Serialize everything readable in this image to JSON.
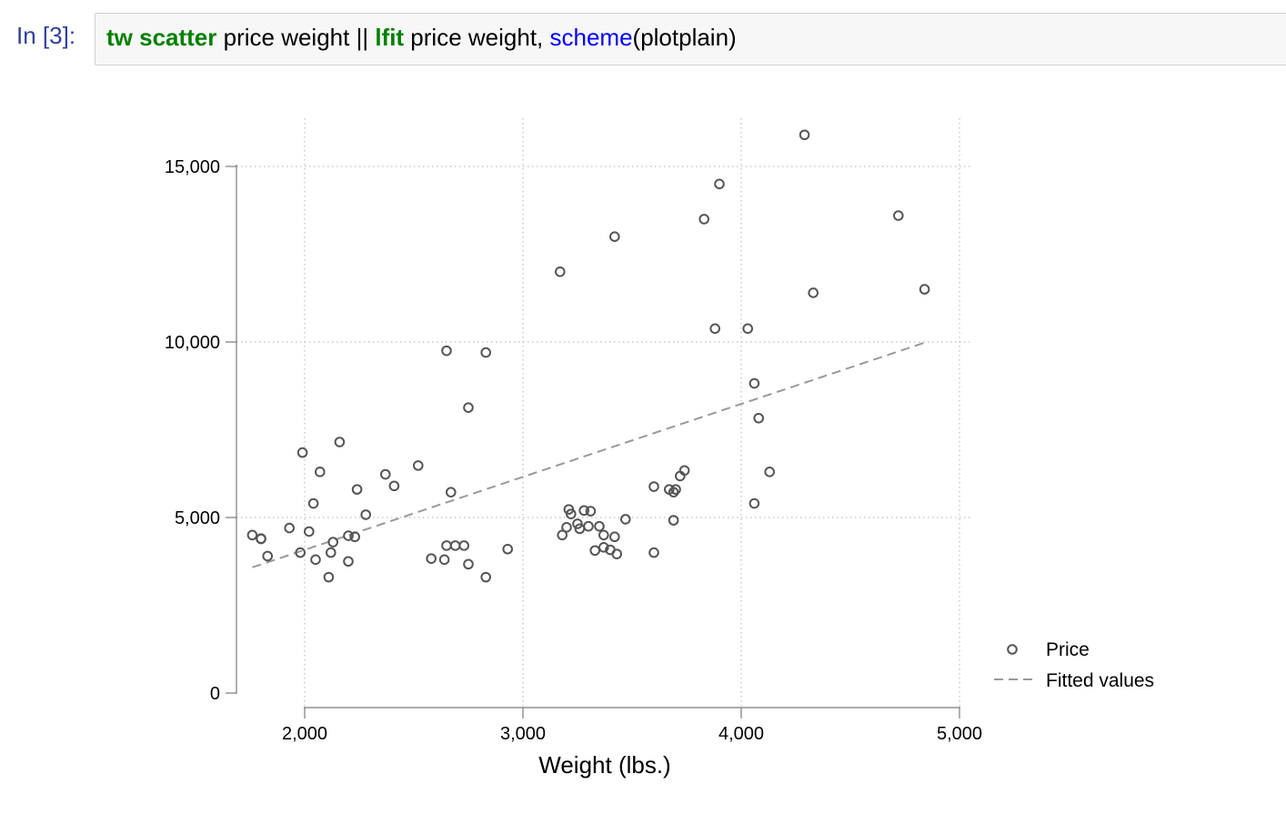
{
  "cell": {
    "prompt": "In [3]:",
    "code_tokens": [
      {
        "text": "tw scatter",
        "style": "green"
      },
      {
        "text": " price weight || ",
        "style": "plain"
      },
      {
        "text": "lfit",
        "style": "green"
      },
      {
        "text": " price weight, ",
        "style": "plain"
      },
      {
        "text": "scheme",
        "style": "blue"
      },
      {
        "text": "(plotplain)",
        "style": "plain"
      }
    ]
  },
  "chart_data": {
    "type": "scatter",
    "title": "",
    "xlabel": "Weight (lbs.)",
    "ylabel": "",
    "xlim": [
      1760,
      5000
    ],
    "ylim": [
      0,
      16000
    ],
    "xticks": [
      2000,
      3000,
      4000,
      5000
    ],
    "xtick_labels": [
      "2,000",
      "3,000",
      "4,000",
      "5,000"
    ],
    "yticks": [
      0,
      5000,
      10000,
      15000
    ],
    "ytick_labels": [
      "0",
      "5,000",
      "10,000",
      "15,000"
    ],
    "grid": true,
    "legend_position": "right",
    "series": [
      {
        "name": "Price",
        "kind": "scatter",
        "marker": "hollow-circle",
        "color": "#555555",
        "points": [
          [
            1760,
            4500
          ],
          [
            1800,
            4400
          ],
          [
            1800,
            4390
          ],
          [
            1830,
            3900
          ],
          [
            1930,
            4700
          ],
          [
            1980,
            4000
          ],
          [
            1990,
            6850
          ],
          [
            2020,
            4600
          ],
          [
            2040,
            5400
          ],
          [
            2050,
            3800
          ],
          [
            2070,
            6300
          ],
          [
            2110,
            3300
          ],
          [
            2120,
            4000
          ],
          [
            2130,
            4300
          ],
          [
            2160,
            7150
          ],
          [
            2200,
            3750
          ],
          [
            2200,
            4480
          ],
          [
            2230,
            4450
          ],
          [
            2240,
            5800
          ],
          [
            2280,
            5080
          ],
          [
            2370,
            6230
          ],
          [
            2410,
            5900
          ],
          [
            2520,
            6480
          ],
          [
            2580,
            3830
          ],
          [
            2640,
            3800
          ],
          [
            2650,
            9750
          ],
          [
            2650,
            4200
          ],
          [
            2670,
            5720
          ],
          [
            2690,
            4200
          ],
          [
            2730,
            4200
          ],
          [
            2750,
            8130
          ],
          [
            2750,
            3670
          ],
          [
            2830,
            3300
          ],
          [
            2830,
            9700
          ],
          [
            2930,
            4100
          ],
          [
            3170,
            12000
          ],
          [
            3180,
            4500
          ],
          [
            3200,
            4720
          ],
          [
            3210,
            5230
          ],
          [
            3220,
            5100
          ],
          [
            3250,
            4820
          ],
          [
            3260,
            4680
          ],
          [
            3280,
            5200
          ],
          [
            3300,
            4750
          ],
          [
            3310,
            5180
          ],
          [
            3330,
            4060
          ],
          [
            3350,
            4750
          ],
          [
            3370,
            4500
          ],
          [
            3370,
            4150
          ],
          [
            3400,
            4080
          ],
          [
            3420,
            4450
          ],
          [
            3420,
            13000
          ],
          [
            3430,
            3960
          ],
          [
            3470,
            4950
          ],
          [
            3600,
            5880
          ],
          [
            3600,
            4000
          ],
          [
            3670,
            5800
          ],
          [
            3690,
            4920
          ],
          [
            3690,
            5720
          ],
          [
            3700,
            5800
          ],
          [
            3720,
            6180
          ],
          [
            3740,
            6340
          ],
          [
            3830,
            13500
          ],
          [
            3880,
            10380
          ],
          [
            3900,
            14500
          ],
          [
            4030,
            10380
          ],
          [
            4060,
            8820
          ],
          [
            4060,
            5400
          ],
          [
            4080,
            7830
          ],
          [
            4130,
            6300
          ],
          [
            4290,
            15900
          ],
          [
            4330,
            11400
          ],
          [
            4720,
            13600
          ],
          [
            4840,
            11500
          ]
        ]
      },
      {
        "name": "Fitted values",
        "kind": "line",
        "style": "dashed",
        "color": "#999999",
        "points": [
          [
            1760,
            3580
          ],
          [
            4840,
            9980
          ]
        ]
      }
    ]
  }
}
